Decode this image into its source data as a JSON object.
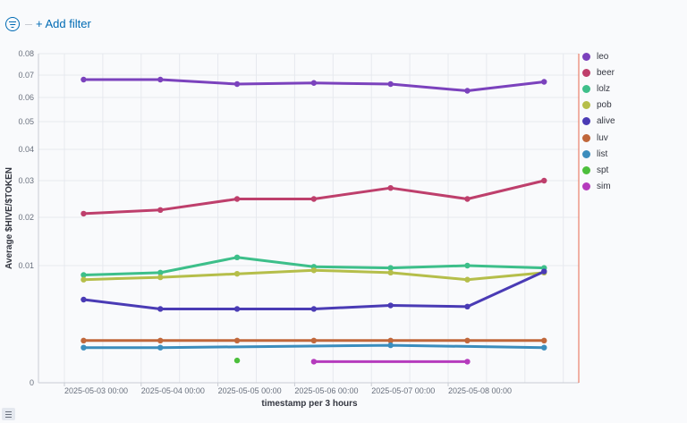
{
  "toolbar": {
    "filter_icon": "filter-icon",
    "add_filter_label": "+ Add filter"
  },
  "chart_data": {
    "type": "line",
    "title": "",
    "xlabel": "timestamp per 3 hours",
    "ylabel": "Average $HIVE/$TOKEN",
    "y_scale": "log-like",
    "y_ticks": [
      "0.08",
      "0.07",
      "0.06",
      "0.05",
      "0.04",
      "0.03",
      "0.02",
      "0.01",
      "0"
    ],
    "x_tick_labels": [
      "2025-05-03 00:00",
      "2025-05-04 00:00",
      "2025-05-05 00:00",
      "2025-05-06 00:00",
      "2025-05-07 00:00",
      "2025-05-08 00:00"
    ],
    "x": [
      "2025-05-03 06:00",
      "2025-05-04 06:00",
      "2025-05-05 06:00",
      "2025-05-06 06:00",
      "2025-05-07 06:00",
      "2025-05-08 06:00",
      "2025-05-09 06:00"
    ],
    "grid": true,
    "legend_position": "right",
    "series": [
      {
        "name": "leo",
        "color": "#7b42bd",
        "values": [
          0.068,
          0.068,
          0.066,
          0.0665,
          0.066,
          0.063,
          0.067
        ]
      },
      {
        "name": "beer",
        "color": "#be3f6c",
        "values": [
          0.021,
          0.022,
          0.025,
          0.025,
          0.028,
          0.025,
          0.03
        ]
      },
      {
        "name": "lolz",
        "color": "#3dbf8a",
        "values": [
          0.0092,
          0.0094,
          0.0117,
          0.0099,
          0.0098,
          0.01,
          0.0098
        ]
      },
      {
        "name": "pob",
        "color": "#b5be4a",
        "values": [
          0.0088,
          0.009,
          0.0093,
          0.0096,
          0.0094,
          0.0088,
          0.0094
        ]
      },
      {
        "name": "alive",
        "color": "#4a3bb5",
        "values": [
          0.0071,
          0.0063,
          0.0063,
          0.0063,
          0.0066,
          0.0065,
          0.0095
        ]
      },
      {
        "name": "luv",
        "color": "#c0673b",
        "values": [
          0.0036,
          0.0036,
          0.0036,
          0.0036,
          0.0036,
          0.0036,
          0.0036
        ]
      },
      {
        "name": "list",
        "color": "#3b8dbd",
        "values": [
          0.003,
          0.003,
          null,
          null,
          0.0032,
          null,
          0.003
        ]
      },
      {
        "name": "spt",
        "color": "#4cbf3c",
        "values": [
          null,
          null,
          0.0019,
          null,
          null,
          null,
          null
        ]
      },
      {
        "name": "sim",
        "color": "#b53bbd",
        "values": [
          null,
          null,
          null,
          0.0018,
          null,
          0.0018,
          null
        ]
      }
    ]
  }
}
